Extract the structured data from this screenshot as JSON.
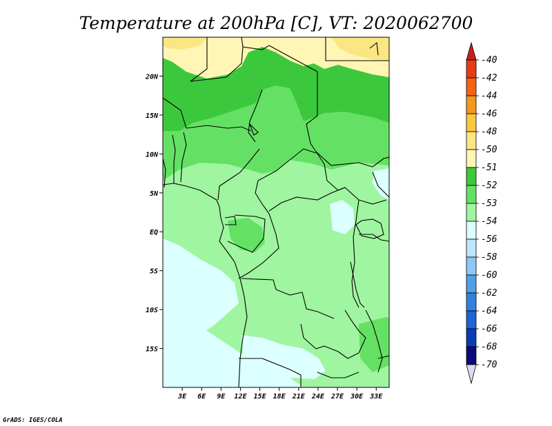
{
  "title": "Temperature at 200hPa [C], VT: 2020062700",
  "credit": "GrADS: IGES/COLA",
  "map": {
    "lon_range": [
      0,
      35
    ],
    "lat_range": [
      -20,
      25
    ],
    "lon_ticks": [
      "3E",
      "6E",
      "9E",
      "12E",
      "15E",
      "18E",
      "21E",
      "24E",
      "27E",
      "30E",
      "33E"
    ],
    "lat_ticks": [
      "20N",
      "15N",
      "10N",
      "5N",
      "EQ",
      "5S",
      "10S",
      "15S"
    ]
  },
  "colorbar": {
    "labels": [
      "-40",
      "-42",
      "-44",
      "-46",
      "-48",
      "-50",
      "-51",
      "-52",
      "-53",
      "-54",
      "-56",
      "-58",
      "-60",
      "-62",
      "-64",
      "-66",
      "-68",
      "-70"
    ],
    "colors": [
      "#c81e1e",
      "#e63c14",
      "#f06414",
      "#f5961e",
      "#fac83c",
      "#fae682",
      "#fff5b4",
      "#3cc83c",
      "#64e164",
      "#a0f5a0",
      "#dcffff",
      "#bee6fa",
      "#8cc8f5",
      "#50a0e6",
      "#3282dc",
      "#1e64d2",
      "#0a3cb4",
      "#0a0a78",
      "#dcdcf0"
    ]
  }
}
